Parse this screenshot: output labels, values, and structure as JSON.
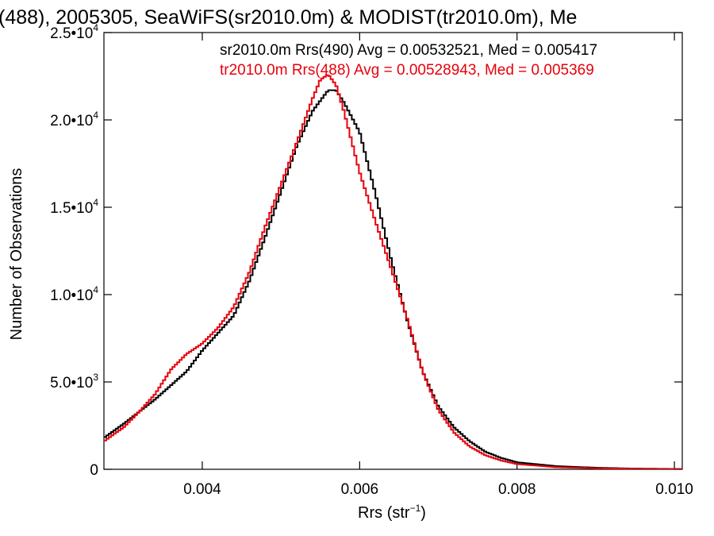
{
  "chart_data": {
    "type": "line",
    "title": "(488), 2005305, SeaWiFS(sr2010.0m) & MODIST(tr2010.0m), Me",
    "xlabel": "Rrs (str",
    "xlabel_sup": "−1",
    "xlabel_close": ")",
    "ylabel": "Number of Observations",
    "xlim": [
      0.00275,
      0.0101
    ],
    "ylim": [
      0,
      25000
    ],
    "x_ticks": [
      {
        "value": 0.004,
        "label": "0.004"
      },
      {
        "value": 0.006,
        "label": "0.006"
      },
      {
        "value": 0.008,
        "label": "0.008"
      },
      {
        "value": 0.01,
        "label": "0.010"
      }
    ],
    "y_ticks": [
      {
        "value": 0,
        "mant": "0",
        "exp": ""
      },
      {
        "value": 5000,
        "mant": "5.0•10",
        "exp": "3"
      },
      {
        "value": 10000,
        "mant": "1.0•10",
        "exp": "4"
      },
      {
        "value": 15000,
        "mant": "1.5•10",
        "exp": "4"
      },
      {
        "value": 20000,
        "mant": "2.0•10",
        "exp": "4"
      },
      {
        "value": 25000,
        "mant": "2.5•10",
        "exp": "4"
      }
    ],
    "legend": [
      {
        "text": "sr2010.0m Rrs(490) Avg = 0.00532521, Med = 0.005417",
        "color": "#000000"
      },
      {
        "text": "tr2010.0m Rrs(488) Avg = 0.00528943, Med = 0.005369",
        "color": "#e8000b"
      }
    ],
    "series": [
      {
        "color": "#000000",
        "points": [
          [
            0.00275,
            1800
          ],
          [
            0.003,
            2600
          ],
          [
            0.0032,
            3300
          ],
          [
            0.0034,
            4000
          ],
          [
            0.0036,
            4800
          ],
          [
            0.0038,
            5600
          ],
          [
            0.004,
            6800
          ],
          [
            0.0042,
            7800
          ],
          [
            0.0044,
            8800
          ],
          [
            0.0046,
            10800
          ],
          [
            0.0048,
            13300
          ],
          [
            0.005,
            15900
          ],
          [
            0.0052,
            18500
          ],
          [
            0.0054,
            20500
          ],
          [
            0.0056,
            21700
          ],
          [
            0.0057,
            21700
          ],
          [
            0.0058,
            21000
          ],
          [
            0.006,
            19300
          ],
          [
            0.0062,
            15800
          ],
          [
            0.0064,
            12000
          ],
          [
            0.0066,
            8600
          ],
          [
            0.0068,
            5600
          ],
          [
            0.007,
            3600
          ],
          [
            0.0072,
            2400
          ],
          [
            0.0074,
            1600
          ],
          [
            0.0076,
            1000
          ],
          [
            0.0078,
            650
          ],
          [
            0.008,
            400
          ],
          [
            0.0085,
            180
          ],
          [
            0.009,
            90
          ],
          [
            0.0095,
            40
          ],
          [
            0.0101,
            20
          ]
        ]
      },
      {
        "color": "#e8000b",
        "points": [
          [
            0.00275,
            1600
          ],
          [
            0.003,
            2400
          ],
          [
            0.0032,
            3300
          ],
          [
            0.0034,
            4300
          ],
          [
            0.0036,
            5700
          ],
          [
            0.0038,
            6600
          ],
          [
            0.004,
            7200
          ],
          [
            0.0042,
            8100
          ],
          [
            0.0044,
            9300
          ],
          [
            0.0046,
            11300
          ],
          [
            0.0048,
            13900
          ],
          [
            0.005,
            16300
          ],
          [
            0.0052,
            18700
          ],
          [
            0.0054,
            21200
          ],
          [
            0.0055,
            22300
          ],
          [
            0.0056,
            22600
          ],
          [
            0.0057,
            22000
          ],
          [
            0.0058,
            20500
          ],
          [
            0.006,
            17000
          ],
          [
            0.0062,
            14200
          ],
          [
            0.0064,
            11500
          ],
          [
            0.0066,
            8700
          ],
          [
            0.0068,
            5600
          ],
          [
            0.007,
            3400
          ],
          [
            0.0072,
            2100
          ],
          [
            0.0074,
            1300
          ],
          [
            0.0076,
            800
          ],
          [
            0.0078,
            500
          ],
          [
            0.008,
            300
          ],
          [
            0.0085,
            120
          ],
          [
            0.009,
            60
          ],
          [
            0.0095,
            30
          ],
          [
            0.0101,
            15
          ]
        ]
      }
    ]
  }
}
